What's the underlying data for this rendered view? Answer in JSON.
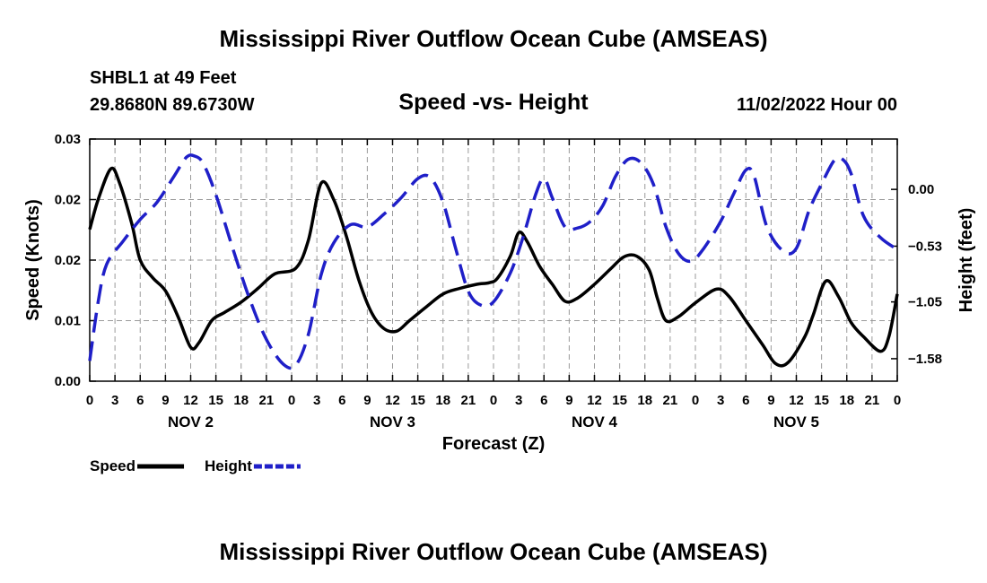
{
  "page": {
    "title_top": "Mississippi River Outflow Ocean Cube (AMSEAS)",
    "title_bottom": "Mississippi River Outflow Ocean Cube (AMSEAS)",
    "station": "SHBL1 at 49 Feet",
    "coords": "29.8680N  89.6730W",
    "subtitle": "Speed -vs- Height",
    "datetime": "11/02/2022 Hour 00"
  },
  "chart_data": {
    "type": "line",
    "title": "Speed -vs- Height",
    "xlabel": "Forecast (Z)",
    "ylabel": "Speed (Knots)",
    "y2label": "Height (feet)",
    "x_range_hours": [
      0,
      96
    ],
    "ylim": [
      0,
      0.03
    ],
    "y2lim": [
      -1.79,
      0.47
    ],
    "grid": true,
    "x_ticks": [
      {
        "h": 0,
        "label": "0"
      },
      {
        "h": 3,
        "label": "3"
      },
      {
        "h": 6,
        "label": "6"
      },
      {
        "h": 9,
        "label": "9"
      },
      {
        "h": 12,
        "label": "12"
      },
      {
        "h": 15,
        "label": "15"
      },
      {
        "h": 18,
        "label": "18"
      },
      {
        "h": 21,
        "label": "21"
      },
      {
        "h": 24,
        "label": "0"
      },
      {
        "h": 27,
        "label": "3"
      },
      {
        "h": 30,
        "label": "6"
      },
      {
        "h": 33,
        "label": "9"
      },
      {
        "h": 36,
        "label": "12"
      },
      {
        "h": 39,
        "label": "15"
      },
      {
        "h": 42,
        "label": "18"
      },
      {
        "h": 45,
        "label": "21"
      },
      {
        "h": 48,
        "label": "0"
      },
      {
        "h": 51,
        "label": "3"
      },
      {
        "h": 54,
        "label": "6"
      },
      {
        "h": 57,
        "label": "9"
      },
      {
        "h": 60,
        "label": "12"
      },
      {
        "h": 63,
        "label": "15"
      },
      {
        "h": 66,
        "label": "18"
      },
      {
        "h": 69,
        "label": "21"
      },
      {
        "h": 72,
        "label": "0"
      },
      {
        "h": 75,
        "label": "3"
      },
      {
        "h": 78,
        "label": "6"
      },
      {
        "h": 81,
        "label": "9"
      },
      {
        "h": 84,
        "label": "12"
      },
      {
        "h": 87,
        "label": "15"
      },
      {
        "h": 90,
        "label": "18"
      },
      {
        "h": 93,
        "label": "21"
      },
      {
        "h": 96,
        "label": "0"
      }
    ],
    "day_labels": [
      {
        "h": 12,
        "label": "NOV 2"
      },
      {
        "h": 36,
        "label": "NOV 3"
      },
      {
        "h": 60,
        "label": "NOV 4"
      },
      {
        "h": 84,
        "label": "NOV 5"
      }
    ],
    "y_ticks": [
      {
        "v": 0.0,
        "label": "0.00"
      },
      {
        "v": 0.0075,
        "label": "0.01"
      },
      {
        "v": 0.015,
        "label": "0.02"
      },
      {
        "v": 0.0225,
        "label": "0.02"
      },
      {
        "v": 0.03,
        "label": "0.03"
      }
    ],
    "y2_ticks": [
      {
        "v": 0.0,
        "label": "0.00"
      },
      {
        "v": -0.53,
        "label": "-0.53"
      },
      {
        "v": -1.05,
        "label": "-1.05"
      },
      {
        "v": -1.58,
        "label": "-1.58"
      }
    ],
    "series": [
      {
        "name": "Speed",
        "axis": "left",
        "color": "#000000",
        "dash": "none",
        "points": [
          [
            0,
            0.0188
          ],
          [
            1,
            0.0225
          ],
          [
            2.5,
            0.0263
          ],
          [
            3.5,
            0.0247
          ],
          [
            5,
            0.0195
          ],
          [
            6,
            0.015
          ],
          [
            7.5,
            0.0128
          ],
          [
            9,
            0.0112
          ],
          [
            10.5,
            0.008
          ],
          [
            12,
            0.0042
          ],
          [
            13,
            0.0048
          ],
          [
            14.5,
            0.0075
          ],
          [
            16,
            0.0085
          ],
          [
            18,
            0.0098
          ],
          [
            20,
            0.0115
          ],
          [
            22,
            0.0133
          ],
          [
            24.5,
            0.014
          ],
          [
            26,
            0.0175
          ],
          [
            27.5,
            0.0245
          ],
          [
            29,
            0.0225
          ],
          [
            30.5,
            0.018
          ],
          [
            32,
            0.0125
          ],
          [
            33.5,
            0.0085
          ],
          [
            35,
            0.0065
          ],
          [
            36.5,
            0.0062
          ],
          [
            38,
            0.0075
          ],
          [
            40,
            0.0092
          ],
          [
            42,
            0.0108
          ],
          [
            44,
            0.0115
          ],
          [
            46,
            0.012
          ],
          [
            47.5,
            0.0122
          ],
          [
            48.5,
            0.0128
          ],
          [
            50,
            0.0155
          ],
          [
            51,
            0.0184
          ],
          [
            52,
            0.0173
          ],
          [
            53.5,
            0.0142
          ],
          [
            55,
            0.012
          ],
          [
            56.5,
            0.0099
          ],
          [
            58,
            0.0103
          ],
          [
            60,
            0.012
          ],
          [
            62,
            0.014
          ],
          [
            63.5,
            0.0154
          ],
          [
            65,
            0.0155
          ],
          [
            66.5,
            0.0138
          ],
          [
            67.5,
            0.0102
          ],
          [
            68.5,
            0.0075
          ],
          [
            70,
            0.008
          ],
          [
            72,
            0.0097
          ],
          [
            74.5,
            0.0114
          ],
          [
            76,
            0.0105
          ],
          [
            78,
            0.0075
          ],
          [
            80,
            0.0045
          ],
          [
            81.5,
            0.0022
          ],
          [
            83,
            0.0023
          ],
          [
            85,
            0.0055
          ],
          [
            86,
            0.0082
          ],
          [
            87.5,
            0.0124
          ],
          [
            89,
            0.0105
          ],
          [
            90.5,
            0.0073
          ],
          [
            92,
            0.0055
          ],
          [
            94,
            0.0037
          ],
          [
            95,
            0.0055
          ],
          [
            96,
            0.0108
          ]
        ]
      },
      {
        "name": "Height",
        "axis": "right",
        "color": "#1f1fc8",
        "dash": "dashed",
        "points": [
          [
            0,
            -1.6
          ],
          [
            1,
            -1.05
          ],
          [
            2,
            -0.7
          ],
          [
            4,
            -0.48
          ],
          [
            6,
            -0.28
          ],
          [
            8,
            -0.12
          ],
          [
            10,
            0.12
          ],
          [
            11.5,
            0.3
          ],
          [
            12.5,
            0.31
          ],
          [
            13.5,
            0.24
          ],
          [
            15,
            -0.05
          ],
          [
            17,
            -0.55
          ],
          [
            19,
            -1.02
          ],
          [
            21,
            -1.4
          ],
          [
            23,
            -1.63
          ],
          [
            24.5,
            -1.64
          ],
          [
            26,
            -1.35
          ],
          [
            27.5,
            -0.8
          ],
          [
            29,
            -0.5
          ],
          [
            31,
            -0.33
          ],
          [
            33,
            -0.35
          ],
          [
            35,
            -0.23
          ],
          [
            37,
            -0.08
          ],
          [
            39,
            0.1
          ],
          [
            40.5,
            0.11
          ],
          [
            42,
            -0.12
          ],
          [
            43.5,
            -0.55
          ],
          [
            45,
            -0.95
          ],
          [
            46.5,
            -1.08
          ],
          [
            48,
            -1.05
          ],
          [
            50,
            -0.78
          ],
          [
            51.5,
            -0.45
          ],
          [
            53,
            -0.05
          ],
          [
            54,
            0.1
          ],
          [
            55,
            -0.08
          ],
          [
            56.5,
            -0.35
          ],
          [
            58,
            -0.36
          ],
          [
            59.5,
            -0.3
          ],
          [
            61,
            -0.15
          ],
          [
            62.5,
            0.12
          ],
          [
            64,
            0.28
          ],
          [
            65.5,
            0.25
          ],
          [
            67,
            0.05
          ],
          [
            68.5,
            -0.35
          ],
          [
            70,
            -0.6
          ],
          [
            71.5,
            -0.67
          ],
          [
            73,
            -0.55
          ],
          [
            75,
            -0.3
          ],
          [
            76.5,
            -0.05
          ],
          [
            78,
            0.18
          ],
          [
            79,
            0.12
          ],
          [
            80.5,
            -0.35
          ],
          [
            82.5,
            -0.58
          ],
          [
            84,
            -0.55
          ],
          [
            85.5,
            -0.2
          ],
          [
            87,
            0.05
          ],
          [
            88.5,
            0.27
          ],
          [
            89.5,
            0.28
          ],
          [
            90.5,
            0.15
          ],
          [
            92,
            -0.25
          ],
          [
            94,
            -0.45
          ],
          [
            96,
            -0.56
          ]
        ]
      }
    ],
    "legend": [
      {
        "label": "Speed",
        "color": "#000000",
        "dash": "none"
      },
      {
        "label": "Height",
        "color": "#1f1fc8",
        "dash": "dashed"
      }
    ],
    "legend_position": "bottom-left"
  }
}
